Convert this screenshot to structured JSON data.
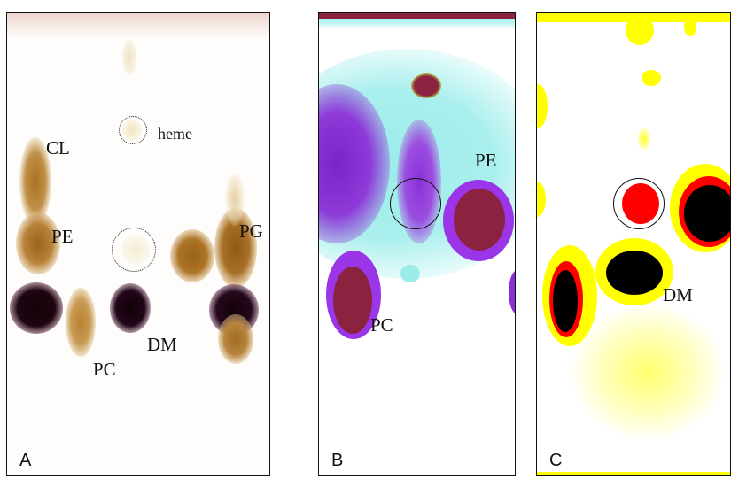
{
  "panels": [
    {
      "letter": "A",
      "labels": {
        "cl": "CL",
        "pe": "PE",
        "pg": "PG",
        "pc": "PC",
        "dm": "DM",
        "heme": "heme"
      }
    },
    {
      "letter": "B",
      "labels": {
        "pe": "PE",
        "pc": "PC"
      }
    },
    {
      "letter": "C",
      "labels": {
        "dm": "DM"
      }
    }
  ],
  "colors": {
    "stain_brown": "#a86f1e",
    "dark_spot": "#1a0710",
    "cyan_bg": "#9fefef",
    "purple": "#8a2be2",
    "maroon": "#8b2340",
    "yellow": "#ffff00",
    "red": "#ff0000",
    "black": "#000000"
  }
}
